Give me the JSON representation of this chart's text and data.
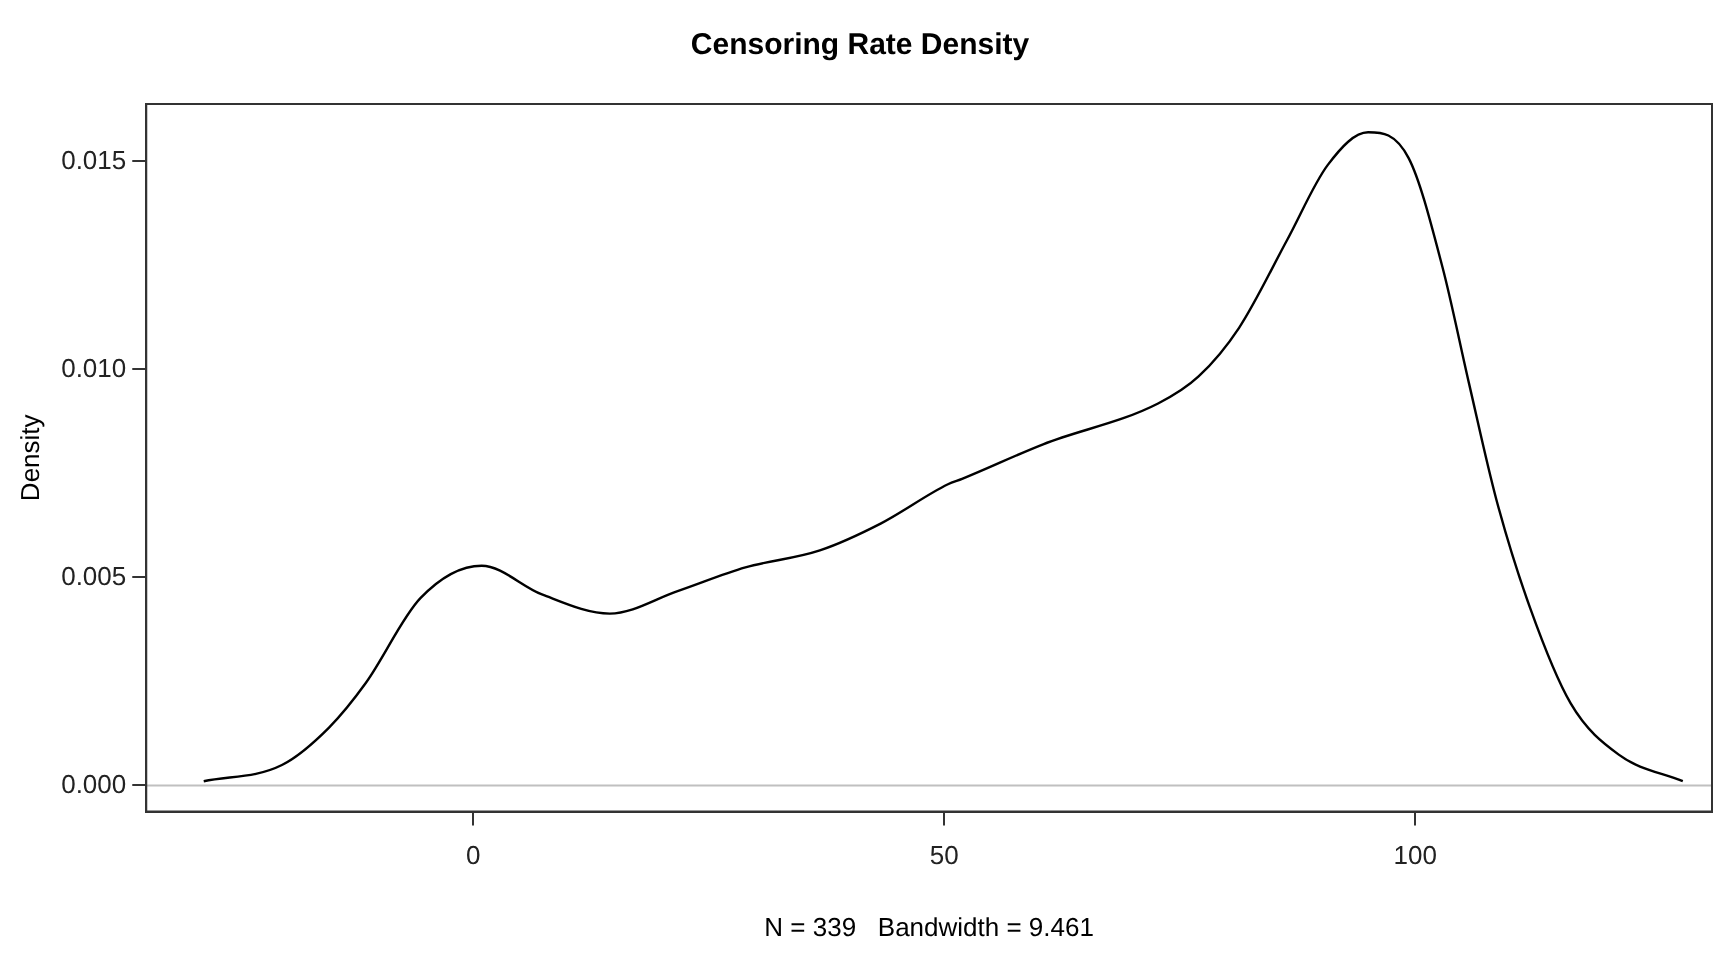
{
  "chart_data": {
    "type": "line",
    "title": "Censoring Rate Density",
    "xlabel": "N = 339   Bandwidth = 9.461",
    "ylabel": "Density",
    "xlim": [
      -34.7,
      131.5
    ],
    "xticks": [
      0,
      50,
      100
    ],
    "ylim": [
      -0.00063,
      0.01638
    ],
    "yticks": [
      {
        "value": 0,
        "label": "0.000"
      },
      {
        "value": 0.005,
        "label": "0.005"
      },
      {
        "value": 0.01,
        "label": "0.010"
      },
      0.015
    ],
    "grid": false,
    "legend": false,
    "marker": "none",
    "line_style": "solid",
    "ref_lines": [
      {
        "axis": "y",
        "value": 0,
        "color": "#c0c0c0"
      }
    ],
    "series": [
      {
        "color": "#000000",
        "x": [
          -28.6,
          -20.3,
          -15.3,
          -11.4,
          -5.6,
          0.9,
          7.3,
          14.5,
          21.7,
          28.9,
          36.8,
          43.3,
          50.4,
          51.9,
          60.5,
          72.7,
          77,
          81.3,
          86.4,
          90.7,
          95,
          99.3,
          102.9,
          105.7,
          108.6,
          112.2,
          116.5,
          121.6,
          128.4
        ],
        "values": [
          0.0001,
          0.00049,
          0.00139,
          0.00246,
          0.0045,
          0.00528,
          0.00459,
          0.00413,
          0.00467,
          0.00524,
          0.00565,
          0.0063,
          0.00724,
          0.00737,
          0.0082,
          0.00918,
          0.00983,
          0.011,
          0.01311,
          0.01491,
          0.0157,
          0.01508,
          0.01245,
          0.00967,
          0.00688,
          0.00426,
          0.00197,
          0.00074,
          0.0001
        ]
      }
    ]
  }
}
